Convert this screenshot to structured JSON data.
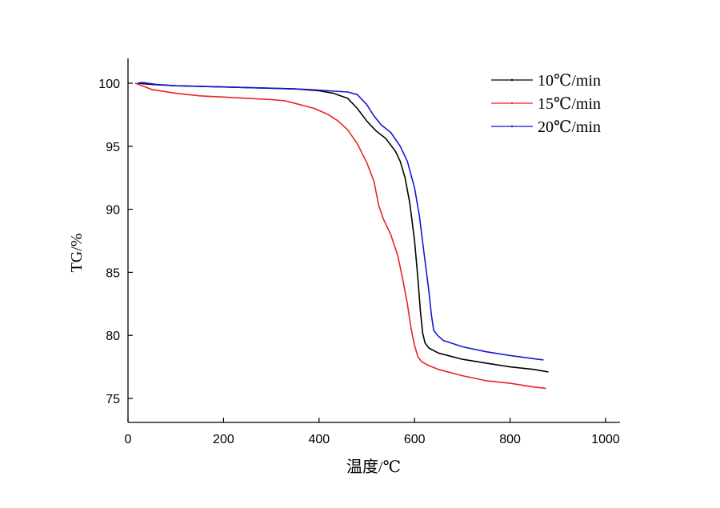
{
  "chart_data": {
    "type": "line",
    "title": "",
    "xlabel": "温度/℃",
    "ylabel": "TG/%",
    "xlim": [
      0,
      1000
    ],
    "ylim": [
      73,
      102
    ],
    "x_ticks": [
      0,
      200,
      400,
      600,
      800,
      1000
    ],
    "y_ticks": [
      75,
      80,
      85,
      90,
      95,
      100
    ],
    "grid": false,
    "legend_position": "top-right",
    "series": [
      {
        "name": "10℃/min",
        "color": "#000000",
        "points": [
          [
            20,
            100.0
          ],
          [
            50,
            99.9
          ],
          [
            100,
            99.8
          ],
          [
            200,
            99.7
          ],
          [
            300,
            99.6
          ],
          [
            350,
            99.55
          ],
          [
            400,
            99.4
          ],
          [
            430,
            99.2
          ],
          [
            460,
            98.8
          ],
          [
            480,
            98.0
          ],
          [
            500,
            97.0
          ],
          [
            520,
            96.2
          ],
          [
            540,
            95.6
          ],
          [
            560,
            94.6
          ],
          [
            570,
            93.8
          ],
          [
            580,
            92.5
          ],
          [
            590,
            90.5
          ],
          [
            600,
            87.5
          ],
          [
            607,
            84.5
          ],
          [
            612,
            82.0
          ],
          [
            617,
            80.2
          ],
          [
            622,
            79.4
          ],
          [
            630,
            79.0
          ],
          [
            650,
            78.6
          ],
          [
            700,
            78.1
          ],
          [
            750,
            77.8
          ],
          [
            800,
            77.5
          ],
          [
            850,
            77.3
          ],
          [
            880,
            77.1
          ]
        ]
      },
      {
        "name": "15℃/min",
        "color": "#e8231f",
        "points": [
          [
            15,
            100.0
          ],
          [
            30,
            99.8
          ],
          [
            50,
            99.5
          ],
          [
            100,
            99.2
          ],
          [
            150,
            99.0
          ],
          [
            200,
            98.9
          ],
          [
            250,
            98.8
          ],
          [
            300,
            98.7
          ],
          [
            330,
            98.6
          ],
          [
            360,
            98.3
          ],
          [
            390,
            98.0
          ],
          [
            420,
            97.5
          ],
          [
            440,
            97.0
          ],
          [
            460,
            96.3
          ],
          [
            480,
            95.2
          ],
          [
            500,
            93.7
          ],
          [
            515,
            92.2
          ],
          [
            525,
            90.3
          ],
          [
            535,
            89.2
          ],
          [
            550,
            88.0
          ],
          [
            565,
            86.3
          ],
          [
            575,
            84.5
          ],
          [
            585,
            82.5
          ],
          [
            593,
            80.5
          ],
          [
            600,
            79.2
          ],
          [
            607,
            78.3
          ],
          [
            615,
            77.9
          ],
          [
            630,
            77.6
          ],
          [
            650,
            77.3
          ],
          [
            700,
            76.8
          ],
          [
            750,
            76.4
          ],
          [
            800,
            76.2
          ],
          [
            850,
            75.9
          ],
          [
            875,
            75.8
          ]
        ]
      },
      {
        "name": "20℃/min",
        "color": "#1515d6",
        "points": [
          [
            20,
            100.0
          ],
          [
            30,
            100.05
          ],
          [
            60,
            99.9
          ],
          [
            100,
            99.8
          ],
          [
            200,
            99.7
          ],
          [
            300,
            99.6
          ],
          [
            380,
            99.5
          ],
          [
            420,
            99.4
          ],
          [
            460,
            99.3
          ],
          [
            480,
            99.1
          ],
          [
            500,
            98.3
          ],
          [
            515,
            97.4
          ],
          [
            530,
            96.7
          ],
          [
            550,
            96.1
          ],
          [
            570,
            95.0
          ],
          [
            585,
            93.8
          ],
          [
            600,
            91.7
          ],
          [
            610,
            89.5
          ],
          [
            620,
            86.5
          ],
          [
            630,
            83.5
          ],
          [
            635,
            81.7
          ],
          [
            640,
            80.4
          ],
          [
            648,
            80.0
          ],
          [
            660,
            79.6
          ],
          [
            700,
            79.1
          ],
          [
            750,
            78.7
          ],
          [
            800,
            78.4
          ],
          [
            850,
            78.15
          ],
          [
            870,
            78.05
          ]
        ]
      }
    ]
  }
}
